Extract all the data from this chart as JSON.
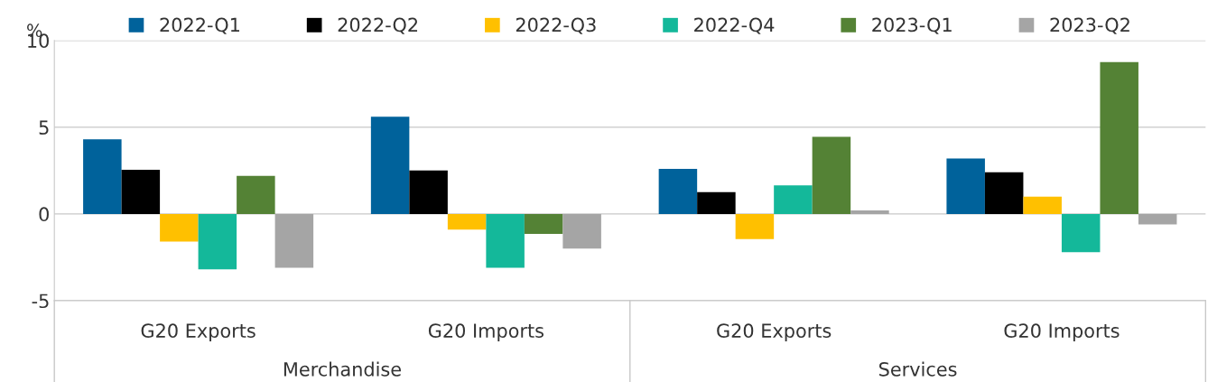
{
  "chart_data": {
    "type": "bar",
    "ylabel": "%",
    "categories": [
      "G20 Exports",
      "G20 Imports",
      "G20 Exports",
      "G20 Imports"
    ],
    "annotations": [
      "Merchandise",
      "Services"
    ],
    "series": [
      {
        "name": "2022-Q1",
        "color": "#00629b",
        "values": [
          4.3,
          5.6,
          2.6,
          3.2
        ]
      },
      {
        "name": "2022-Q2",
        "color": "#000000",
        "values": [
          2.55,
          2.5,
          1.25,
          2.4
        ]
      },
      {
        "name": "2022-Q3",
        "color": "#ffc000",
        "values": [
          -1.6,
          -0.9,
          -1.45,
          1.0
        ]
      },
      {
        "name": "2022-Q4",
        "color": "#14b89a",
        "values": [
          -3.2,
          -3.1,
          1.65,
          -2.2
        ]
      },
      {
        "name": "2023-Q1",
        "color": "#548235",
        "values": [
          2.2,
          -1.15,
          4.45,
          8.75
        ]
      },
      {
        "name": "2023-Q2",
        "color": "#a5a5a5",
        "values": [
          -3.1,
          -2.0,
          0.2,
          -0.6
        ]
      }
    ],
    "ylim": [
      -5,
      10
    ],
    "yticks": [
      -5,
      0,
      5,
      10
    ],
    "grid": "y",
    "legend": "top"
  }
}
